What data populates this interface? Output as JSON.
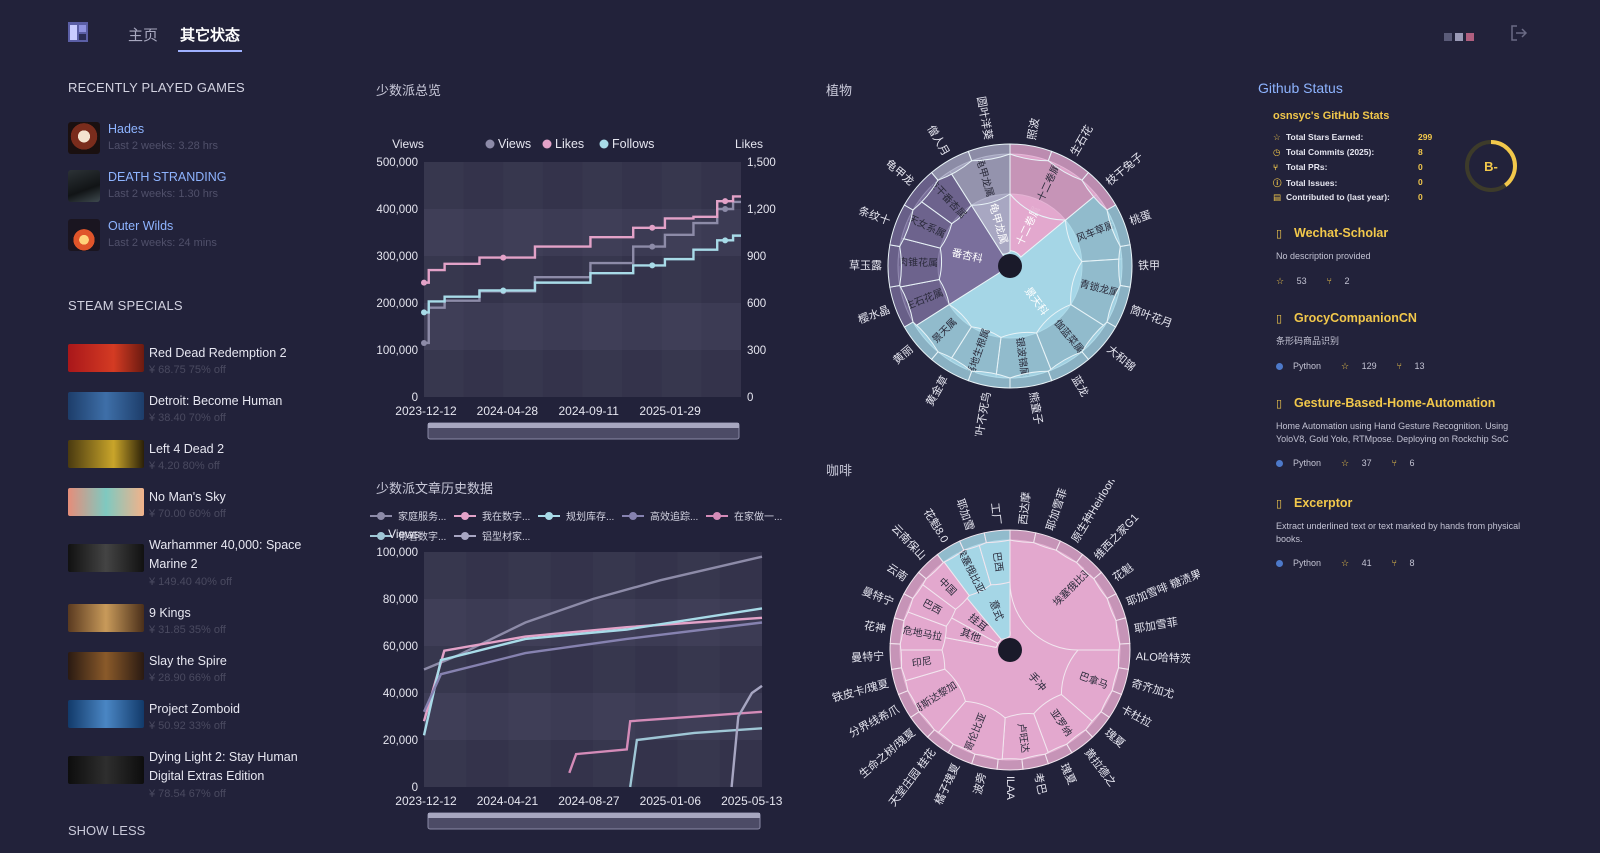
{
  "nav": {
    "home": "主页",
    "other": "其它状态"
  },
  "recent": {
    "title": "RECENTLY PLAYED GAMES",
    "games": [
      {
        "name": "Hades",
        "sub": "Last 2 weeks: 3.28 hrs"
      },
      {
        "name": "DEATH STRANDING",
        "sub": "Last 2 weeks: 1.30 hrs"
      },
      {
        "name": "Outer Wilds",
        "sub": "Last 2 weeks: 24 mins"
      }
    ]
  },
  "specials": {
    "title": "STEAM SPECIALS",
    "items": [
      {
        "name": "Red Dead Redemption 2",
        "price": "¥ 68.75 75% off"
      },
      {
        "name": "Detroit: Become Human",
        "price": "¥ 38.40 70% off"
      },
      {
        "name": "Left 4 Dead 2",
        "price": "¥ 4.20 80% off"
      },
      {
        "name": "No Man's Sky",
        "price": "¥ 70.00 60% off"
      },
      {
        "name": "Warhammer 40,000: Space Marine 2",
        "price": "¥ 149.40 40% off"
      },
      {
        "name": "9 Kings",
        "price": "¥ 31.85 35% off"
      },
      {
        "name": "Slay the Spire",
        "price": "¥ 28.90 66% off"
      },
      {
        "name": "Project Zomboid",
        "price": "¥ 50.92 33% off"
      },
      {
        "name": "Dying Light 2: Stay Human Digital Extras Edition",
        "price": "¥ 78.54 67% off"
      }
    ],
    "show_less": "SHOW LESS"
  },
  "chart_data": [
    {
      "type": "line",
      "title": "少数派总览",
      "ylabel": "Views",
      "y2label": "Likes",
      "ylim": [
        0,
        500000
      ],
      "y2lim": [
        0,
        1500
      ],
      "xticks": [
        "2023-12-12",
        "2024-04-28",
        "2024-09-11",
        "2025-01-29"
      ],
      "yticks": [
        "0",
        "100,000",
        "200,000",
        "300,000",
        "400,000",
        "500,000"
      ],
      "y2ticks": [
        "0",
        "300",
        "600",
        "900",
        "1,200",
        "1,500"
      ],
      "legend": [
        "Views",
        "Likes",
        "Follows"
      ],
      "x": [
        0,
        0.03,
        0.1,
        0.25,
        0.45,
        0.6,
        0.72,
        0.8,
        0.9,
        0.95,
        1.0
      ],
      "series": [
        {
          "name": "Views",
          "color": "#8d8ba8",
          "axis": "left",
          "values": [
            115000,
            190000,
            205000,
            225000,
            255000,
            285000,
            320000,
            345000,
            370000,
            400000,
            415000
          ]
        },
        {
          "name": "Likes",
          "color": "#e3a2c8",
          "axis": "right",
          "values": [
            730,
            810,
            850,
            890,
            960,
            1020,
            1080,
            1140,
            1150,
            1250,
            1280
          ]
        },
        {
          "name": "Follows",
          "color": "#a8dbe8",
          "axis": "right",
          "values": [
            540,
            610,
            640,
            680,
            730,
            790,
            840,
            880,
            940,
            1000,
            1030
          ]
        }
      ]
    },
    {
      "type": "line",
      "title": "少数派文章历史数据",
      "ylabel": "Views",
      "ylim": [
        0,
        100000
      ],
      "xticks": [
        "2023-12-12",
        "2024-04-21",
        "2024-08-27",
        "2025-01-06",
        "2025-05-13"
      ],
      "yticks": [
        "0",
        "20,000",
        "40,000",
        "60,000",
        "80,000",
        "100,000"
      ],
      "legend": [
        "家庭服务...",
        "我在数字...",
        "规划库存...",
        "高效追踪...",
        "在家做一...",
        "带着数字...",
        "铝型材家..."
      ],
      "series": [
        {
          "name": "家庭服务...",
          "color": "#8d8ba8",
          "points": [
            [
              0.0,
              50000
            ],
            [
              0.1,
              56000
            ],
            [
              0.3,
              70000
            ],
            [
              0.5,
              80000
            ],
            [
              0.7,
              88000
            ],
            [
              1.0,
              98000
            ]
          ]
        },
        {
          "name": "我在数字...",
          "color": "#e3a2c8",
          "points": [
            [
              0.0,
              28000
            ],
            [
              0.06,
              58000
            ],
            [
              0.3,
              64000
            ],
            [
              0.6,
              68000
            ],
            [
              1.0,
              72000
            ]
          ]
        },
        {
          "name": "规划库存...",
          "color": "#a8dbe8",
          "points": [
            [
              0.0,
              22000
            ],
            [
              0.05,
              54000
            ],
            [
              0.3,
              63000
            ],
            [
              0.6,
              67000
            ],
            [
              1.0,
              76000
            ]
          ]
        },
        {
          "name": "高效追踪...",
          "color": "#8682b0",
          "points": [
            [
              0.0,
              32000
            ],
            [
              0.05,
              48000
            ],
            [
              0.3,
              57000
            ],
            [
              0.6,
              63000
            ],
            [
              1.0,
              70000
            ]
          ]
        },
        {
          "name": "在家做一...",
          "color": "#d48bb8",
          "points": [
            [
              0.43,
              6000
            ],
            [
              0.45,
              14000
            ],
            [
              0.6,
              16000
            ],
            [
              0.61,
              28000
            ],
            [
              1.0,
              32000
            ]
          ]
        },
        {
          "name": "带着数字...",
          "color": "#9fc7d6",
          "points": [
            [
              0.61,
              0
            ],
            [
              0.63,
              20000
            ],
            [
              0.8,
              23000
            ],
            [
              1.0,
              25000
            ]
          ]
        },
        {
          "name": "铝型材家...",
          "color": "#a7a6c2",
          "points": [
            [
              0.91,
              0
            ],
            [
              0.93,
              30000
            ],
            [
              0.97,
              40000
            ],
            [
              1.0,
              43000
            ]
          ]
        }
      ]
    },
    {
      "type": "sunburst",
      "title": "植物",
      "inner": [
        {
          "name": "番杏科",
          "color": "#7a6f9c",
          "value": 25
        },
        {
          "name": "景天科",
          "color": "#a5d6e6",
          "value": 52
        },
        {
          "name": "十二卷属",
          "color": "#e3a8ce",
          "value": 14
        },
        {
          "name": "龟甲龙属",
          "color": "#a8a7c2",
          "value": 9
        }
      ],
      "middle": [
        {
          "name": "生石花属",
          "parent": 0,
          "value": 6
        },
        {
          "name": "肉锥花属",
          "parent": 0,
          "value": 7
        },
        {
          "name": "天女系属",
          "parent": 0,
          "value": 6
        },
        {
          "name": "枝干番杏属",
          "parent": 0,
          "value": 6
        },
        {
          "name": "风车草属",
          "parent": 1,
          "value": 10
        },
        {
          "name": "青锁龙属",
          "parent": 1,
          "value": 10
        },
        {
          "name": "伽蓝菜属",
          "parent": 1,
          "value": 10
        },
        {
          "name": "银波锦属",
          "parent": 1,
          "value": 8
        },
        {
          "name": "落地生根属",
          "parent": 1,
          "value": 7
        },
        {
          "name": "景天属",
          "parent": 1,
          "value": 7
        },
        {
          "name": "十二卷属",
          "parent": 2,
          "value": 14
        },
        {
          "name": "龟甲龙属",
          "parent": 3,
          "value": 9
        }
      ],
      "outer": [
        "照波",
        "生石花",
        "枝干兔子",
        "桃蛋",
        "铁甲",
        "筒叶花月",
        "大和锦",
        "蓝龙",
        "熊童子",
        "宽叶不死鸟",
        "黄金草",
        "黄丽",
        "樱水晶",
        "草玉露",
        "条纹十",
        "龟甲龙",
        "僧人月",
        "圆叶洋葵"
      ]
    },
    {
      "type": "sunburst",
      "title": "咖啡",
      "inner": [
        {
          "name": "手冲",
          "color": "#e3a8ce",
          "value": 78
        },
        {
          "name": "意式",
          "color": "#a5d6e6",
          "value": 11
        },
        {
          "name": "挂耳",
          "color": "#e3a8ce",
          "value": 6
        },
        {
          "name": "其他",
          "color": "#e3a8ce",
          "value": 5
        }
      ],
      "middle": [
        "埃塞俄比亚",
        "巴拿马",
        "亚罗纳",
        "卢旺达",
        "哥伦比亚",
        "哥斯达黎加",
        "印尼",
        "危地马拉",
        "巴西",
        "中国",
        "埃塞俄比亚",
        "巴西"
      ],
      "outer": [
        "西达摩",
        "耶加雪菲",
        "原生种Heirloom",
        "维西之家G1",
        "花魁",
        "耶加雪啡 糖渍果",
        "耶加雪菲",
        "ALO哈特茨",
        "奇齐加尤",
        "卡杜拉",
        "瑰夏",
        "黄拉德之",
        "瑰夏",
        "考巴",
        "ILAA",
        "波旁",
        "橘子瑰夏",
        "天堂庄园 桂花",
        "生命之树/瑰夏",
        "分界线希爪",
        "铁皮卡/瑰夏",
        "曼特宁",
        "花神",
        "曼特宁",
        "云南",
        "云南保山",
        "花魁8.0",
        "耶加雪",
        "工厂"
      ]
    }
  ],
  "github": {
    "title": "Github Status",
    "card_title": "osnsyc's GitHub Stats",
    "stats": [
      {
        "label": "Total Stars Earned:",
        "value": "299"
      },
      {
        "label": "Total Commits (2025):",
        "value": "8"
      },
      {
        "label": "Total PRs:",
        "value": "0"
      },
      {
        "label": "Total Issues:",
        "value": "0"
      },
      {
        "label": "Contributed to (last year):",
        "value": "0"
      }
    ],
    "grade": "B-",
    "repos": [
      {
        "name": "Wechat-Scholar",
        "desc": "No description provided",
        "lang": "",
        "stars": "53",
        "forks": "2"
      },
      {
        "name": "GrocyCompanionCN",
        "desc": "条形码商品识别",
        "lang": "Python",
        "stars": "129",
        "forks": "13"
      },
      {
        "name": "Gesture-Based-Home-Automation",
        "desc": "Home Automation using Hand Gesture Recognition. Using YoloV8, Gold Yolo, RTMpose. Deploying on Rockchip SoC",
        "lang": "Python",
        "stars": "37",
        "forks": "6"
      },
      {
        "name": "Excerptor",
        "desc": "Extract underlined text or text marked by hands from physical books.",
        "lang": "Python",
        "stars": "41",
        "forks": "8"
      }
    ]
  },
  "colors": {
    "bg": "#22223a",
    "plot_bg": "#3a3952",
    "accent": "#8eb4ff",
    "gh_yellow": "#f2c84b"
  }
}
